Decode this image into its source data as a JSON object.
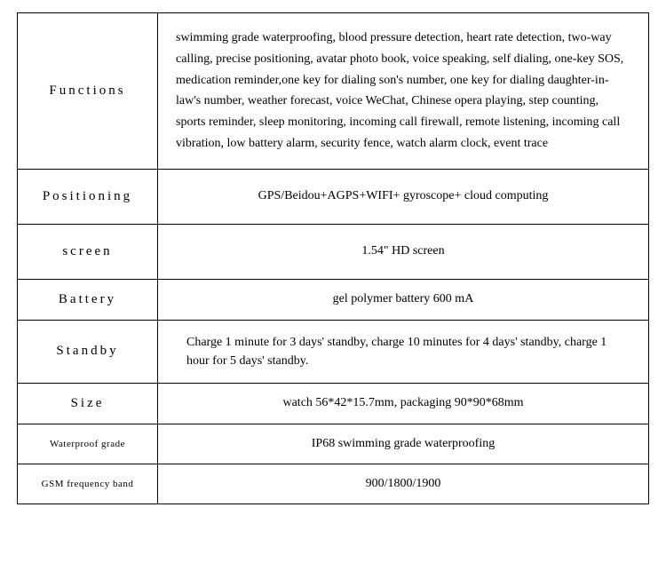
{
  "table": {
    "border_color": "#000000",
    "background_color": "#ffffff",
    "text_color": "#000000",
    "label_fontsize": 15,
    "label_small_fontsize": 11,
    "value_fontsize": 14,
    "label_col_width": 158,
    "total_width": 712,
    "rows": [
      {
        "label": "Functions",
        "value": "swimming grade waterproofing, blood pressure detection, heart rate detection, two-way calling, precise positioning, avatar photo book, voice speaking, self dialing, one-key SOS, medication reminder,one key for dialing son's number, one key for dialing daughter-in-law's number, weather forecast, voice WeChat, Chinese opera playing, step counting, sports reminder, sleep monitoring, incoming call firewall, remote listening, incoming call vibration, low battery alarm, security fence, watch alarm clock, event trace",
        "label_style": "label",
        "value_align": "left",
        "row_class": "row-functions"
      },
      {
        "label": "Positioning",
        "value": "GPS/Beidou+AGPS+WIFI+ gyroscope+ cloud computing",
        "label_style": "label",
        "value_align": "center",
        "row_class": "row-med"
      },
      {
        "label": "screen",
        "value": "1.54\" HD screen",
        "label_style": "label",
        "value_align": "center",
        "row_class": "row-med"
      },
      {
        "label": "Battery",
        "value": "gel polymer battery 600 mA",
        "label_style": "label",
        "value_align": "center",
        "row_class": "row-compact"
      },
      {
        "label": "Standby",
        "value": "Charge 1 minute for 3 days' standby, charge 10 minutes for 4 days' standby, charge 1 hour for 5 days' standby.",
        "label_style": "label",
        "value_align": "standby",
        "row_class": "row-compact"
      },
      {
        "label": "Size",
        "value": "watch 56*42*15.7mm, packaging 90*90*68mm",
        "label_style": "label",
        "value_align": "center",
        "row_class": "row-compact"
      },
      {
        "label": "Waterproof grade",
        "value": "IP68 swimming grade waterproofing",
        "label_style": "label-small",
        "value_align": "center",
        "row_class": "row-compact"
      },
      {
        "label": "GSM frequency band",
        "value": "900/1800/1900",
        "label_style": "label-small",
        "value_align": "center",
        "row_class": "row-compact"
      }
    ]
  }
}
